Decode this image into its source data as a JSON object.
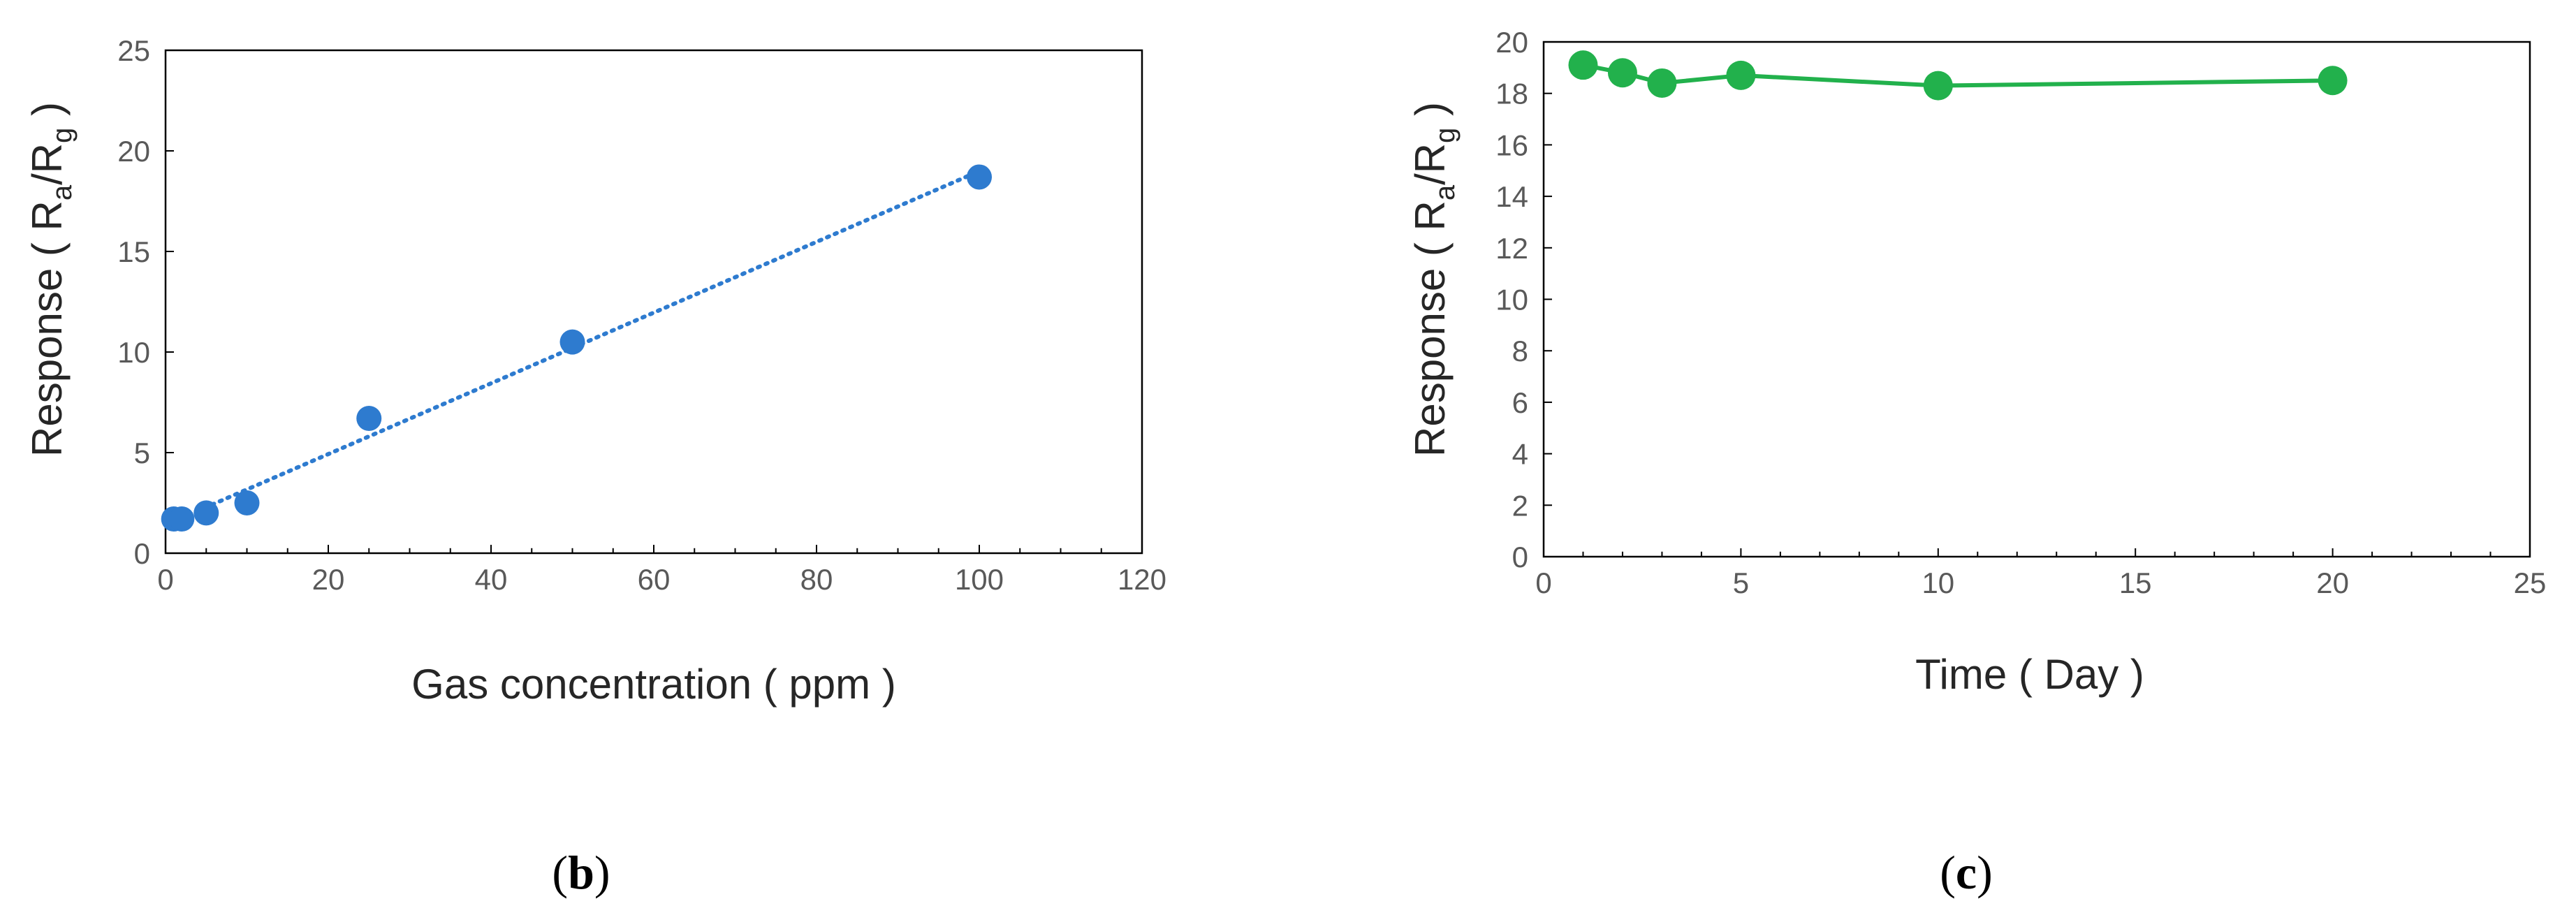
{
  "chart_data": [
    {
      "type": "scatter",
      "panel_label": "b",
      "xlabel": "Gas concentration ( ppm )",
      "ylabel": {
        "prefix": "Response ( R",
        "sub1": "a",
        "mid": "/R",
        "sub2": "g",
        "suffix": " )"
      },
      "xlim": [
        0,
        120
      ],
      "ylim": [
        0,
        25
      ],
      "xticks": [
        "0",
        "20",
        "40",
        "60",
        "80",
        "100",
        "120"
      ],
      "yticks": [
        "0",
        "5",
        "10",
        "15",
        "20",
        "25"
      ],
      "x_minor_step": 5,
      "grid": false,
      "trendline": "linear, dotted",
      "color": "#2E7BCF",
      "series": [
        {
          "x": [
            1,
            2,
            5,
            10,
            25,
            50,
            100
          ],
          "y": [
            1.7,
            1.7,
            2.0,
            2.5,
            6.7,
            10.5,
            18.7
          ]
        }
      ]
    },
    {
      "type": "line",
      "panel_label": "c",
      "xlabel": "Time ( Day )",
      "ylabel": {
        "prefix": "Response ( R",
        "sub1": "a",
        "mid": "/R",
        "sub2": "g",
        "suffix": " )"
      },
      "xlim": [
        0,
        25
      ],
      "ylim": [
        0,
        20
      ],
      "xticks": [
        "0",
        "5",
        "10",
        "15",
        "20",
        "25"
      ],
      "yticks": [
        "0",
        "2",
        "4",
        "6",
        "8",
        "10",
        "12",
        "14",
        "16",
        "18",
        "20"
      ],
      "x_minor_step": 1,
      "grid": false,
      "markers": true,
      "color": "#22B14C",
      "series": [
        {
          "x": [
            1,
            2,
            3,
            5,
            10,
            20
          ],
          "y": [
            19.1,
            18.8,
            18.4,
            18.7,
            18.3,
            18.5
          ]
        }
      ]
    }
  ]
}
